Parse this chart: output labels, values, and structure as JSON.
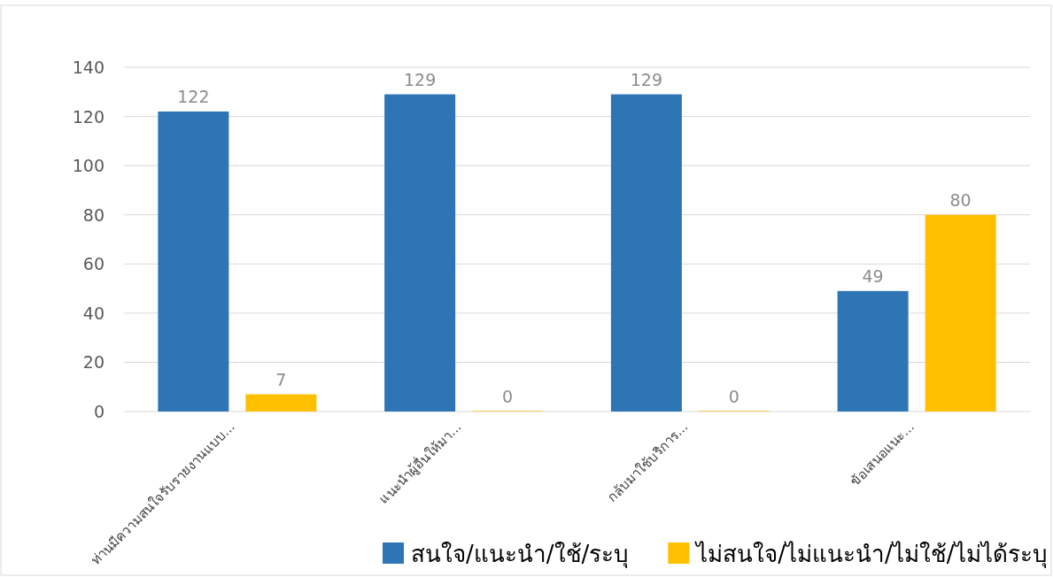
{
  "chart_data": {
    "type": "bar",
    "categories": [
      "ท่านมีความสนใจรับรายงานแบบ...",
      "แนะนำผู้อื่นให้มา...",
      "กลับมาใช้บริการ...",
      "ข้อเสนอแนะ..."
    ],
    "series": [
      {
        "name": "สนใจ/แนะนำ/ใช้/ระบุ",
        "color": "#2e75b6",
        "values": [
          122,
          129,
          129,
          49
        ]
      },
      {
        "name": "ไม่สนใจ/ไม่แนะนำ/ไม่ใช้/ไม่ได้ระบุ",
        "color": "#ffc000",
        "values": [
          7,
          0,
          0,
          80
        ]
      }
    ],
    "ylim": [
      0,
      140
    ],
    "yticks": [
      0,
      20,
      40,
      60,
      80,
      100,
      120,
      140
    ],
    "grid": "y",
    "data_labels": true,
    "legend": "bottom"
  }
}
